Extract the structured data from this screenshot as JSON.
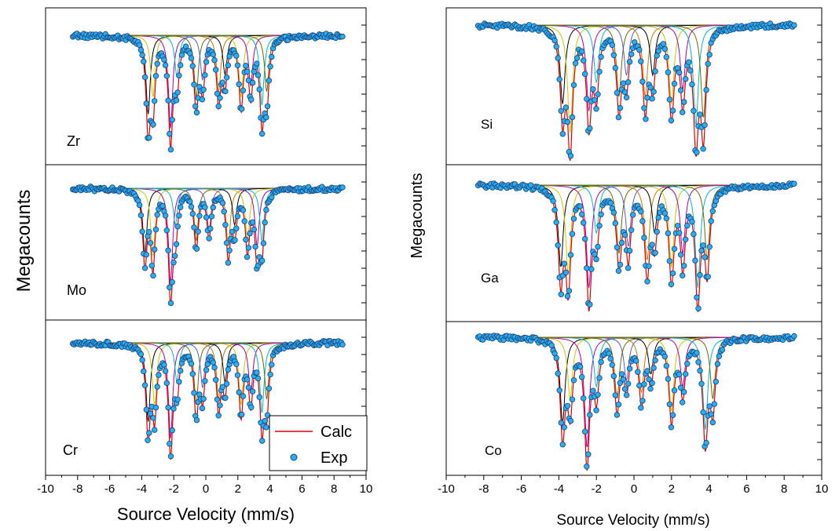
{
  "figure": {
    "left_group": {
      "ylabel": "Megacounts",
      "xlabel": "Source Velocity (mm/s)",
      "xlim": [
        -10,
        10
      ],
      "x_ticks": [
        -10,
        -8,
        -6,
        -4,
        -2,
        0,
        2,
        4,
        6,
        8,
        10
      ],
      "legend": {
        "calc": "Calc",
        "exp": "Exp",
        "placement": "bottom-right of Cr panel"
      }
    },
    "right_group": {
      "ylabel": "Megacounts",
      "xlabel": "Source Velocity (mm/s)",
      "xlim": [
        -10,
        10
      ],
      "x_ticks": [
        -10,
        -8,
        -6,
        -4,
        -2,
        0,
        2,
        4,
        6,
        8,
        10
      ]
    }
  },
  "colors": {
    "calc": "#e00000",
    "exp_fill": "#29aef0",
    "exp_edge": "#1a3f7a",
    "components": [
      "#000000",
      "#c8c800",
      "#b000b0",
      "#00b7c8",
      "#6a6a00",
      "#5a5acf",
      "#c47a00"
    ]
  },
  "chart_data": [
    {
      "type": "scatter",
      "panel": "Zr",
      "label": "Zr",
      "xlim": [
        -10,
        10
      ],
      "baseline": 1.0,
      "lines": [
        {
          "pos": -3.6,
          "depth": 0.28
        },
        {
          "pos": -3.3,
          "depth": 0.22
        },
        {
          "pos": -2.2,
          "depth": 0.33
        },
        {
          "pos": -1.8,
          "depth": 0.15
        },
        {
          "pos": -0.6,
          "depth": 0.22
        },
        {
          "pos": -0.2,
          "depth": 0.16
        },
        {
          "pos": 0.8,
          "depth": 0.2
        },
        {
          "pos": 1.2,
          "depth": 0.14
        },
        {
          "pos": 2.2,
          "depth": 0.22
        },
        {
          "pos": 2.8,
          "depth": 0.18
        },
        {
          "pos": 3.5,
          "depth": 0.25
        },
        {
          "pos": 3.8,
          "depth": 0.2
        }
      ],
      "series": [
        {
          "name": "Calc"
        },
        {
          "name": "Exp"
        }
      ]
    },
    {
      "type": "scatter",
      "panel": "Mo",
      "label": "Mo",
      "xlim": [
        -10,
        10
      ],
      "baseline": 1.0,
      "lines": [
        {
          "pos": -3.8,
          "depth": 0.25
        },
        {
          "pos": -3.3,
          "depth": 0.26
        },
        {
          "pos": -2.2,
          "depth": 0.36
        },
        {
          "pos": -1.9,
          "depth": 0.14
        },
        {
          "pos": -0.6,
          "depth": 0.2
        },
        {
          "pos": 0.2,
          "depth": 0.16
        },
        {
          "pos": 1.4,
          "depth": 0.22
        },
        {
          "pos": 1.8,
          "depth": 0.14
        },
        {
          "pos": 2.6,
          "depth": 0.2
        },
        {
          "pos": 3.2,
          "depth": 0.22
        },
        {
          "pos": 3.5,
          "depth": 0.2
        }
      ],
      "series": [
        {
          "name": "Calc"
        },
        {
          "name": "Exp"
        }
      ]
    },
    {
      "type": "scatter",
      "panel": "Cr",
      "label": "Cr",
      "xlim": [
        -10,
        10
      ],
      "baseline": 1.0,
      "lines": [
        {
          "pos": -3.6,
          "depth": 0.28
        },
        {
          "pos": -3.2,
          "depth": 0.22
        },
        {
          "pos": -2.2,
          "depth": 0.34
        },
        {
          "pos": -1.8,
          "depth": 0.14
        },
        {
          "pos": -0.6,
          "depth": 0.22
        },
        {
          "pos": -0.2,
          "depth": 0.16
        },
        {
          "pos": 0.8,
          "depth": 0.2
        },
        {
          "pos": 1.2,
          "depth": 0.14
        },
        {
          "pos": 2.2,
          "depth": 0.22
        },
        {
          "pos": 2.8,
          "depth": 0.18
        },
        {
          "pos": 3.5,
          "depth": 0.25
        },
        {
          "pos": 3.8,
          "depth": 0.2
        }
      ],
      "series": [
        {
          "name": "Calc"
        },
        {
          "name": "Exp"
        }
      ]
    },
    {
      "type": "scatter",
      "panel": "Si",
      "label": "Si",
      "xlim": [
        -10,
        10
      ],
      "baseline": 1.0,
      "lines": [
        {
          "pos": -3.8,
          "depth": 0.22
        },
        {
          "pos": -3.4,
          "depth": 0.3
        },
        {
          "pos": -2.4,
          "depth": 0.24
        },
        {
          "pos": -2.0,
          "depth": 0.16
        },
        {
          "pos": -0.8,
          "depth": 0.2
        },
        {
          "pos": -0.4,
          "depth": 0.14
        },
        {
          "pos": 0.6,
          "depth": 0.2
        },
        {
          "pos": 1.0,
          "depth": 0.14
        },
        {
          "pos": 2.0,
          "depth": 0.22
        },
        {
          "pos": 2.6,
          "depth": 0.18
        },
        {
          "pos": 3.3,
          "depth": 0.28
        },
        {
          "pos": 3.7,
          "depth": 0.26
        }
      ],
      "series": [
        {
          "name": "Calc"
        },
        {
          "name": "Exp"
        }
      ]
    },
    {
      "type": "scatter",
      "panel": "Ga",
      "label": "Ga",
      "xlim": [
        -10,
        10
      ],
      "baseline": 1.0,
      "lines": [
        {
          "pos": -3.9,
          "depth": 0.24
        },
        {
          "pos": -3.5,
          "depth": 0.26
        },
        {
          "pos": -2.4,
          "depth": 0.3
        },
        {
          "pos": -2.0,
          "depth": 0.14
        },
        {
          "pos": -0.8,
          "depth": 0.2
        },
        {
          "pos": -0.3,
          "depth": 0.18
        },
        {
          "pos": 0.7,
          "depth": 0.22
        },
        {
          "pos": 1.1,
          "depth": 0.14
        },
        {
          "pos": 2.0,
          "depth": 0.24
        },
        {
          "pos": 2.6,
          "depth": 0.2
        },
        {
          "pos": 3.4,
          "depth": 0.3
        },
        {
          "pos": 3.9,
          "depth": 0.22
        }
      ],
      "series": [
        {
          "name": "Calc"
        },
        {
          "name": "Exp"
        }
      ]
    },
    {
      "type": "scatter",
      "panel": "Co",
      "label": "Co",
      "xlim": [
        -10,
        10
      ],
      "baseline": 1.0,
      "lines": [
        {
          "pos": -3.8,
          "depth": 0.28
        },
        {
          "pos": -3.4,
          "depth": 0.2
        },
        {
          "pos": -2.5,
          "depth": 0.36
        },
        {
          "pos": -2.0,
          "depth": 0.16
        },
        {
          "pos": -0.9,
          "depth": 0.2
        },
        {
          "pos": -0.4,
          "depth": 0.14
        },
        {
          "pos": 0.4,
          "depth": 0.18
        },
        {
          "pos": 0.9,
          "depth": 0.12
        },
        {
          "pos": 2.0,
          "depth": 0.24
        },
        {
          "pos": 2.6,
          "depth": 0.16
        },
        {
          "pos": 3.8,
          "depth": 0.3
        },
        {
          "pos": 4.2,
          "depth": 0.2
        }
      ],
      "series": [
        {
          "name": "Calc"
        },
        {
          "name": "Exp"
        }
      ]
    }
  ]
}
